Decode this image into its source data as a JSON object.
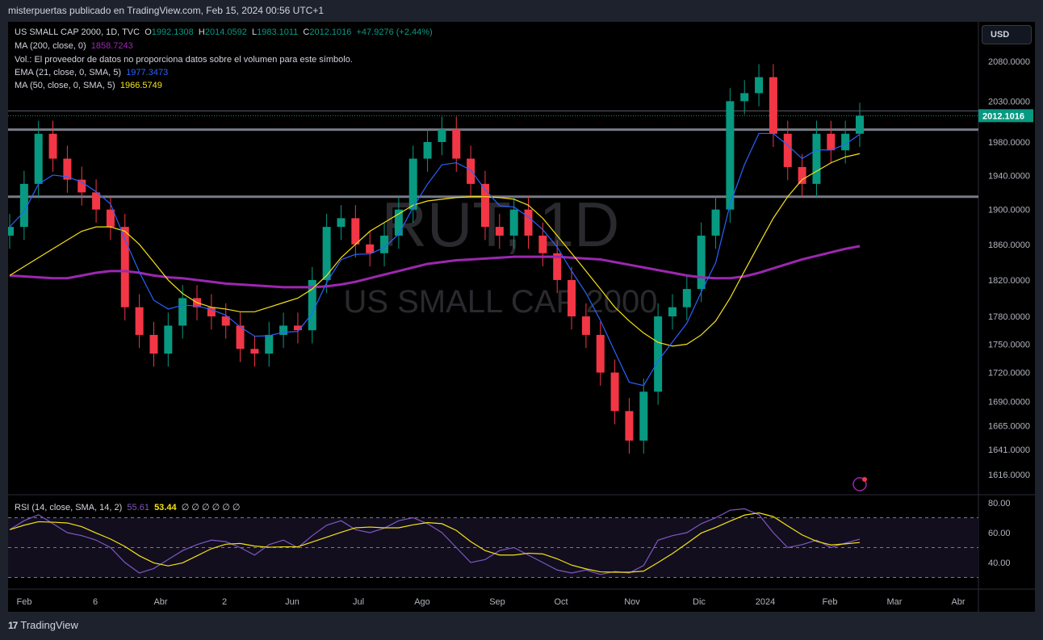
{
  "header": {
    "publisher_line": "misterpuertas publicado en TradingView.com, Feb 15, 2024 00:56 UTC+1"
  },
  "legend": {
    "symbol": "US SMALL CAP 2000, 1D, TVC",
    "o_label": "O",
    "o": "1992.1308",
    "h_label": "H",
    "h": "2014.0592",
    "l_label": "L",
    "l": "1983.1011",
    "c_label": "C",
    "c": "2012.1016",
    "change": "+47.9276 (+2.44%)",
    "ma200_label": "MA (200, close, 0)",
    "ma200": "1858.7243",
    "vol": "Vol.: El proveedor de datos no proporciona datos sobre el volumen para este símbolo.",
    "ema21_label": "EMA (21, close, 0, SMA, 5)",
    "ema21": "1977.3473",
    "ma50_label": "MA (50, close, 0, SMA, 5)",
    "ma50": "1966.5749",
    "rsi_label": "RSI (14, close, SMA, 14, 2)",
    "rsi": "55.61",
    "rsi_sma": "53.44",
    "rsi_extra": "∅ ∅ ∅ ∅ ∅ ∅"
  },
  "currency": "USD",
  "watermark": {
    "symbol": "RUT, 1D",
    "name": "US SMALL CAP 2000"
  },
  "footer": {
    "brand": "TradingView"
  },
  "colors": {
    "up": "#089981",
    "down": "#f23645",
    "ma200": "#9c27b0",
    "ema21": "#2962ff",
    "ma50": "#f5e216",
    "rsi": "#7e57c2",
    "rsi_sma": "#f5e216"
  },
  "chart_data": {
    "type": "candlestick",
    "scale": "log",
    "price_ticks": [
      2080,
      2030,
      1980,
      1940,
      1900,
      1860,
      1820,
      1780,
      1750,
      1720,
      1690,
      1665,
      1641,
      1616
    ],
    "last_price": "2012.1016",
    "horizontal_levels": [
      1995,
      1915
    ],
    "x_ticks": [
      "Feb",
      "6",
      "Abr",
      "2",
      "Jun",
      "Jul",
      "Ago",
      "Sep",
      "Oct",
      "Nov",
      "Dic",
      "2024",
      "Feb",
      "Mar",
      "Abr"
    ],
    "closes": [
      1880,
      1930,
      1990,
      1960,
      1935,
      1920,
      1900,
      1880,
      1790,
      1760,
      1740,
      1770,
      1800,
      1790,
      1780,
      1770,
      1745,
      1740,
      1760,
      1770,
      1765,
      1820,
      1880,
      1890,
      1860,
      1850,
      1870,
      1900,
      1960,
      1980,
      1995,
      1960,
      1930,
      1880,
      1870,
      1900,
      1870,
      1850,
      1820,
      1780,
      1760,
      1720,
      1680,
      1650,
      1700,
      1780,
      1790,
      1810,
      1870,
      1900,
      2030,
      2040,
      2060,
      1990,
      1950,
      1930,
      1990,
      1970,
      1990,
      2012
    ],
    "ma50": [
      1825,
      1835,
      1845,
      1855,
      1865,
      1875,
      1880,
      1880,
      1875,
      1860,
      1840,
      1820,
      1805,
      1795,
      1790,
      1788,
      1785,
      1785,
      1790,
      1795,
      1800,
      1810,
      1825,
      1845,
      1860,
      1875,
      1885,
      1895,
      1905,
      1910,
      1912,
      1914,
      1915,
      1915,
      1914,
      1912,
      1905,
      1890,
      1870,
      1850,
      1830,
      1810,
      1790,
      1775,
      1762,
      1752,
      1748,
      1750,
      1760,
      1775,
      1800,
      1830,
      1860,
      1890,
      1915,
      1935,
      1945,
      1955,
      1962,
      1966
    ],
    "ma200": [
      1825,
      1824,
      1823,
      1822,
      1822,
      1825,
      1828,
      1830,
      1830,
      1828,
      1825,
      1823,
      1822,
      1820,
      1818,
      1816,
      1815,
      1814,
      1813,
      1812,
      1812,
      1812,
      1813,
      1815,
      1818,
      1822,
      1826,
      1830,
      1834,
      1838,
      1840,
      1842,
      1843,
      1844,
      1845,
      1846,
      1846,
      1846,
      1846,
      1845,
      1844,
      1843,
      1840,
      1837,
      1834,
      1831,
      1828,
      1825,
      1823,
      1822,
      1822,
      1824,
      1828,
      1833,
      1838,
      1843,
      1847,
      1851,
      1855,
      1858
    ],
    "rsi_ticks": [
      80,
      60,
      40
    ],
    "rsi_bands": [
      70,
      50,
      30
    ],
    "rsi": [
      62,
      68,
      72,
      66,
      60,
      58,
      55,
      50,
      40,
      33,
      36,
      42,
      48,
      52,
      55,
      54,
      50,
      45,
      52,
      55,
      50,
      58,
      65,
      68,
      62,
      60,
      63,
      68,
      70,
      66,
      60,
      50,
      40,
      42,
      48,
      50,
      45,
      40,
      35,
      33,
      35,
      32,
      34,
      33,
      38,
      55,
      58,
      60,
      66,
      70,
      75,
      76,
      72,
      60,
      50,
      52,
      55,
      50,
      53,
      55.61
    ]
  }
}
